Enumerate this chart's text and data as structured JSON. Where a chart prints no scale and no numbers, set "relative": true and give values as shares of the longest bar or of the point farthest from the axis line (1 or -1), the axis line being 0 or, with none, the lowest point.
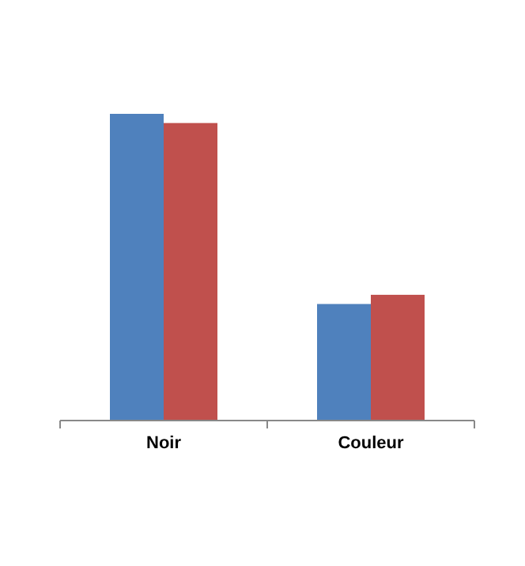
{
  "chart_data": {
    "type": "bar",
    "relative": true,
    "categories": [
      "Noir",
      "Couleur"
    ],
    "series": [
      {
        "color": "#4f81bd",
        "values": [
          1,
          0.38
        ]
      },
      {
        "color": "#c0504d",
        "values": [
          0.97,
          0.41
        ]
      }
    ]
  }
}
